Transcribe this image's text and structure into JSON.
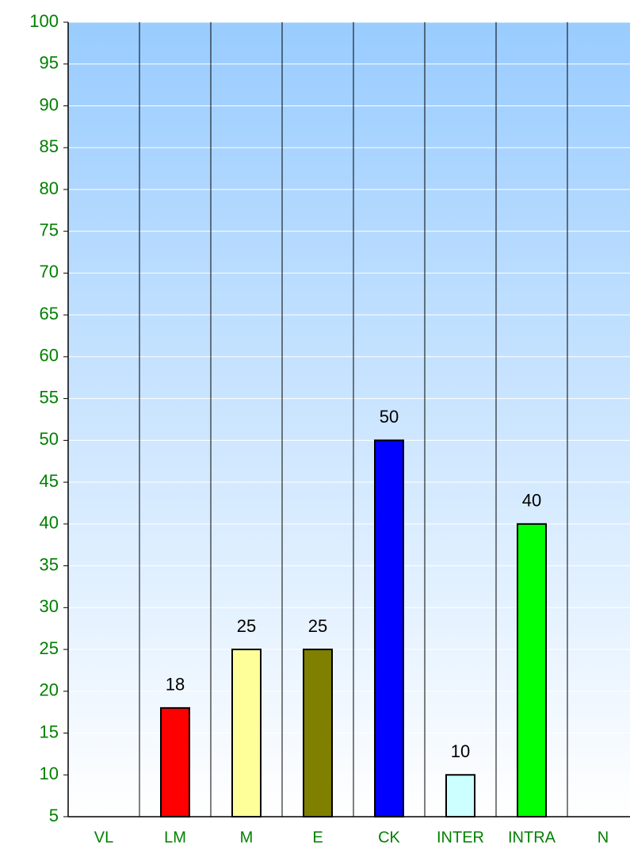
{
  "chart_data": {
    "type": "bar",
    "categories": [
      "VL",
      "LM",
      "M",
      "E",
      "CK",
      "INTER",
      "INTRA",
      "N"
    ],
    "values": [
      5,
      18,
      25,
      25,
      50,
      10,
      40,
      5
    ],
    "value_labels": [
      null,
      "18",
      "25",
      "25",
      "50",
      "10",
      "40",
      null
    ],
    "colors": [
      "#800080",
      "#ff0000",
      "#ffff99",
      "#808000",
      "#0000ff",
      "#ccffff",
      "#00ff00",
      "#000000"
    ],
    "ylim": [
      5,
      100
    ],
    "yticks": [
      5,
      10,
      15,
      20,
      25,
      30,
      35,
      40,
      45,
      50,
      55,
      60,
      65,
      70,
      75,
      80,
      85,
      90,
      95,
      100
    ],
    "grid": true
  }
}
